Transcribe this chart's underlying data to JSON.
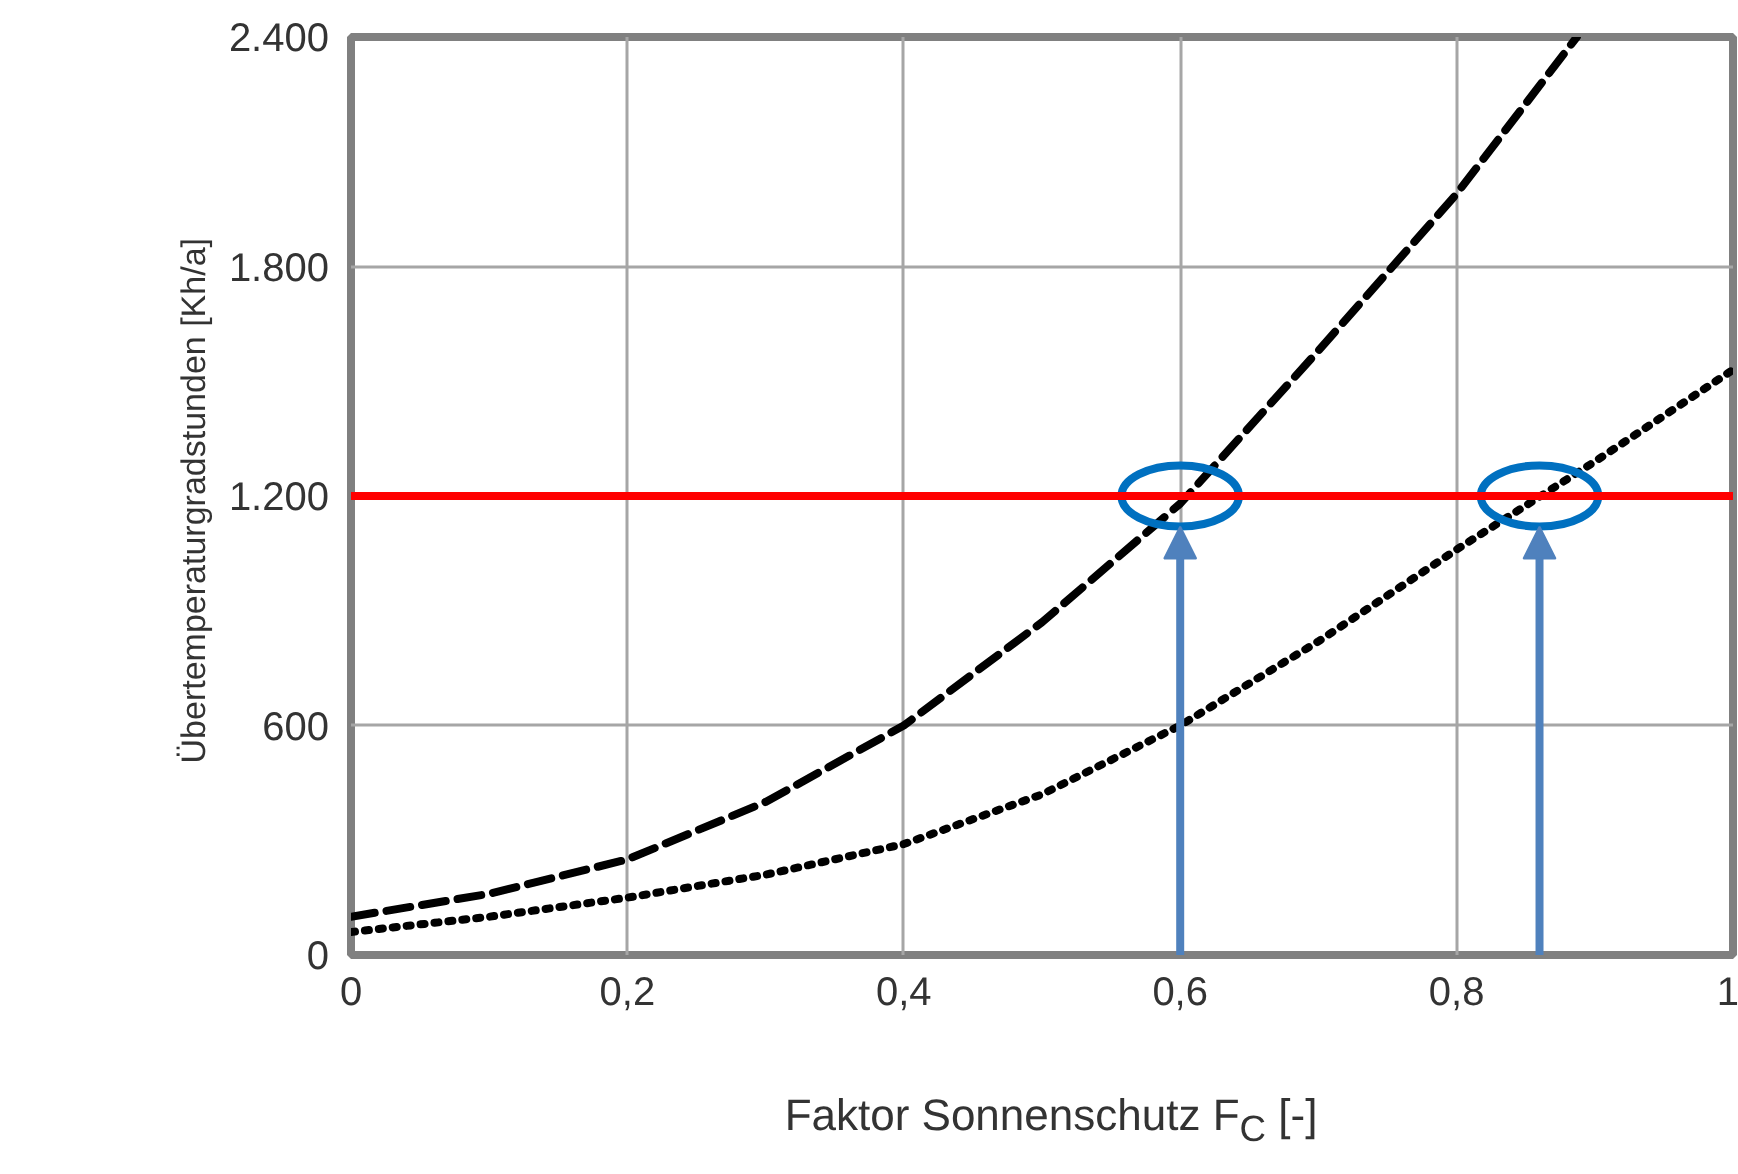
{
  "chart_data": {
    "type": "line",
    "xlabel": "Faktor Sonnenschutz F$_{C}$ [-]",
    "ylabel": "Übertemperaturgradstunden  [Kh/a]",
    "xlim": [
      0,
      1
    ],
    "ylim": [
      0,
      2400
    ],
    "xticks": [
      0,
      {
        "value": 0.2,
        "label": "0,2"
      },
      {
        "value": 0.4,
        "label": "0,4"
      },
      {
        "value": 0.6,
        "label": "0,6"
      },
      {
        "value": 0.8,
        "label": "0,8"
      },
      1
    ],
    "yticks": [
      0,
      600,
      {
        "value": 1200,
        "label": "1.200"
      },
      {
        "value": 1800,
        "label": "1.800"
      },
      {
        "value": 2400,
        "label": "2.400"
      }
    ],
    "grid": true,
    "marker": "none",
    "series": [
      {
        "color": "#000000",
        "line_style": "dashed",
        "x": [
          0,
          0.1,
          0.2,
          0.3,
          0.4,
          0.5,
          0.6,
          0.7,
          0.8,
          0.887
        ],
        "values": [
          100,
          160,
          250,
          400,
          600,
          870,
          1180,
          1580,
          1990,
          2400
        ]
      },
      {
        "color": "#000000",
        "line_style": "dotted",
        "x": [
          0,
          0.1,
          0.2,
          0.3,
          0.4,
          0.5,
          0.6,
          0.7,
          0.8,
          0.9,
          1.0
        ],
        "values": [
          60,
          100,
          150,
          210,
          290,
          420,
          600,
          820,
          1060,
          1290,
          1530
        ]
      }
    ],
    "ref_lines": [
      {
        "axis": "y",
        "value": 1200,
        "color": "#ff0000"
      }
    ]
  }
}
